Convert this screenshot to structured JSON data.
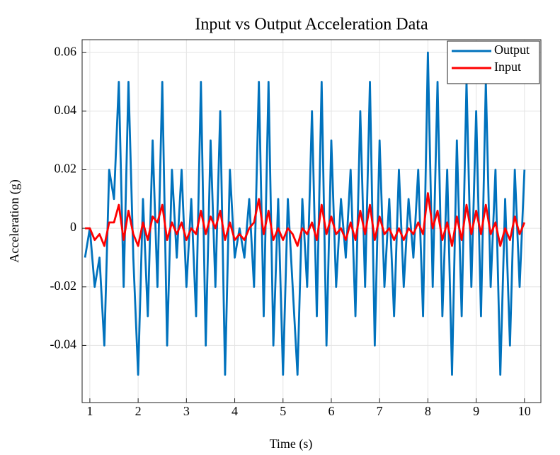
{
  "chart_data": {
    "type": "line",
    "title": "Input vs Output Acceleration Data",
    "xlabel": "Time (s)",
    "ylabel": "Acceleration (g)",
    "x": [
      0.9,
      1.0,
      1.1,
      1.2,
      1.3,
      1.4,
      1.5,
      1.6,
      1.7,
      1.8,
      1.9,
      2.0,
      2.1,
      2.2,
      2.3,
      2.4,
      2.5,
      2.6,
      2.7,
      2.8,
      2.9,
      3.0,
      3.1,
      3.2,
      3.3,
      3.4,
      3.5,
      3.6,
      3.7,
      3.8,
      3.9,
      4.0,
      4.1,
      4.2,
      4.3,
      4.4,
      4.5,
      4.6,
      4.7,
      4.8,
      4.9,
      5.0,
      5.1,
      5.2,
      5.3,
      5.4,
      5.5,
      5.6,
      5.7,
      5.8,
      5.9,
      6.0,
      6.1,
      6.2,
      6.3,
      6.4,
      6.5,
      6.6,
      6.7,
      6.8,
      6.9,
      7.0,
      7.1,
      7.2,
      7.3,
      7.4,
      7.5,
      7.6,
      7.7,
      7.8,
      7.9,
      8.0,
      8.1,
      8.2,
      8.3,
      8.4,
      8.5,
      8.6,
      8.7,
      8.8,
      8.9,
      9.0,
      9.1,
      9.2,
      9.3,
      9.4,
      9.5,
      9.6,
      9.7,
      9.8,
      9.9,
      10.0
    ],
    "series": [
      {
        "name": "Output",
        "color": "#0072bd",
        "values": [
          -0.01,
          0,
          -0.02,
          -0.01,
          -0.04,
          0.02,
          0.01,
          0.05,
          -0.02,
          0.05,
          -0.01,
          -0.05,
          0.01,
          -0.03,
          0.03,
          -0.02,
          0.05,
          -0.04,
          0.02,
          -0.01,
          0.02,
          -0.02,
          0.01,
          -0.03,
          0.05,
          -0.04,
          0.03,
          -0.02,
          0.04,
          -0.05,
          0.02,
          -0.01,
          0,
          -0.01,
          0.01,
          -0.02,
          0.05,
          -0.03,
          0.05,
          -0.04,
          0.01,
          -0.05,
          0.01,
          -0.02,
          -0.05,
          0.01,
          -0.02,
          0.04,
          -0.03,
          0.05,
          -0.04,
          0.03,
          -0.02,
          0.01,
          -0.01,
          0.02,
          -0.03,
          0.04,
          -0.02,
          0.05,
          -0.04,
          0.03,
          -0.02,
          0.01,
          -0.03,
          0.02,
          -0.02,
          0.01,
          -0.01,
          0.02,
          -0.03,
          0.06,
          -0.02,
          0.05,
          -0.03,
          0.02,
          -0.05,
          0.03,
          -0.03,
          0.05,
          -0.02,
          0.04,
          -0.03,
          0.05,
          -0.02,
          0.02,
          -0.05,
          0.01,
          -0.04,
          0.02,
          -0.02,
          0.02
        ]
      },
      {
        "name": "Input",
        "color": "#ff0000",
        "values": [
          0,
          0,
          -0.004,
          -0.002,
          -0.006,
          0.002,
          0.002,
          0.008,
          -0.004,
          0.006,
          -0.002,
          -0.006,
          0.002,
          -0.004,
          0.004,
          0.002,
          0.008,
          -0.004,
          0.002,
          -0.002,
          0.002,
          -0.004,
          0,
          -0.002,
          0.006,
          -0.002,
          0.004,
          0,
          0.006,
          -0.004,
          0.002,
          -0.004,
          -0.002,
          -0.004,
          0,
          0.002,
          0.01,
          -0.002,
          0.006,
          -0.004,
          0,
          -0.004,
          0,
          -0.002,
          -0.006,
          0,
          -0.002,
          0.002,
          -0.004,
          0.008,
          -0.002,
          0.004,
          -0.002,
          0,
          -0.004,
          0.002,
          -0.004,
          0.006,
          -0.002,
          0.008,
          -0.004,
          0.004,
          -0.002,
          0,
          -0.004,
          0,
          -0.004,
          0,
          -0.002,
          0.002,
          -0.002,
          0.012,
          0,
          0.006,
          -0.004,
          0.002,
          -0.006,
          0.004,
          -0.004,
          0.008,
          -0.002,
          0.006,
          -0.002,
          0.008,
          -0.002,
          0.002,
          -0.006,
          0,
          -0.004,
          0.004,
          -0.002,
          0.002
        ]
      }
    ],
    "xlim": [
      0.84,
      10.34
    ],
    "xticks": [
      1,
      2,
      3,
      4,
      5,
      6,
      7,
      8,
      9,
      10
    ],
    "ylim": [
      -0.0595,
      0.0644
    ],
    "yticks": [
      -0.04,
      -0.02,
      0,
      0.02,
      0.04,
      0.06
    ],
    "grid": true,
    "legend": "upper right"
  }
}
